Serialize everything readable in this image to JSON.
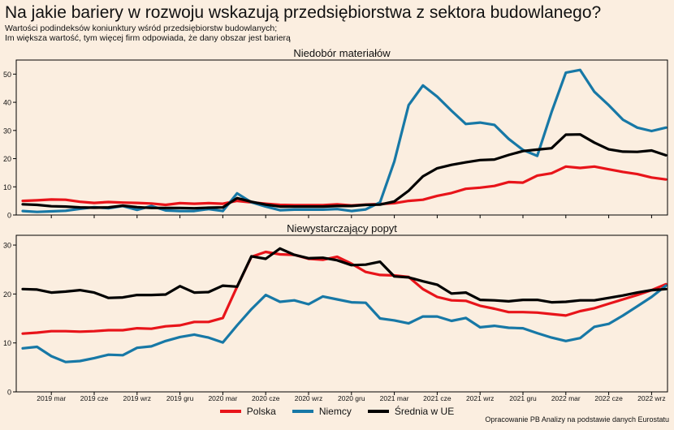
{
  "title": "Na jakie bariery w rozwoju wskazują przedsiębiorstwa z sektora budowlanego?",
  "subtitle_line1": "Wartości podindeksów koniunktury wśród przedsiębiorstw budowlanych;",
  "subtitle_line2": "Im większa wartość, tym więcej firm odpowiada, że dany obszar jest barierą",
  "source": "Opracowanie PB Analizy na podstawie danych Eurostatu",
  "colors": {
    "Polska": "#e8141a",
    "Niemcy": "#1778a6",
    "Średnia w UE": "#000000"
  },
  "x_tick_labels": [
    "2019 mar",
    "2019 cze",
    "2019 wrz",
    "2019 gru",
    "2020 mar",
    "2020 cze",
    "2020 wrz",
    "2020 gru",
    "2021 mar",
    "2021 cze",
    "2021 wrz",
    "2021 gru",
    "2022 mar",
    "2022 cze",
    "2022 wrz"
  ],
  "chart_data": [
    {
      "type": "line",
      "title": "Niedobór materiałów",
      "x_start": "2019-01",
      "x_end": "2022-10",
      "ylim": [
        0,
        55
      ],
      "yticks": [
        0,
        10,
        20,
        30,
        40,
        50
      ],
      "series": [
        {
          "name": "Polska",
          "values": [
            5,
            5.2,
            5.5,
            5.4,
            4.7,
            4.3,
            4.6,
            4.4,
            4.3,
            4.1,
            3.6,
            4.2,
            4,
            4.2,
            4,
            5,
            4.5,
            4,
            3.6,
            3.5,
            3.5,
            3.5,
            3.8,
            3.4,
            3.7,
            3.9,
            4.2,
            5,
            5.4,
            6.8,
            7.8,
            9.3,
            9.7,
            10.3,
            11.7,
            11.5,
            14,
            14.8,
            17.2,
            16.7,
            17.2,
            16.2,
            15.3,
            14.5,
            13.3,
            12.6
          ]
        },
        {
          "name": "Niemcy",
          "values": [
            1.4,
            1.1,
            1.3,
            1.5,
            2.2,
            2.8,
            2.4,
            3.2,
            1.8,
            3.2,
            1.6,
            1.4,
            1.4,
            2.1,
            1.4,
            7.7,
            4.5,
            3,
            1.7,
            1.9,
            1.9,
            1.9,
            2.1,
            1.4,
            2,
            4.5,
            19,
            39,
            46,
            42,
            37,
            32.3,
            32.8,
            32,
            27,
            23.1,
            21,
            36.5,
            50.5,
            51.5,
            43.7,
            39,
            33.8,
            31,
            29.8,
            31
          ]
        },
        {
          "name": "Średnia w UE",
          "values": [
            3.8,
            3.6,
            3.1,
            3,
            2.7,
            2.6,
            2.7,
            3.3,
            2.8,
            2.5,
            2.5,
            2.5,
            2.4,
            2.6,
            2.7,
            6,
            4.7,
            3.7,
            3,
            3,
            3,
            3,
            3.2,
            3.2,
            3.6,
            3.7,
            4.8,
            8.6,
            13.7,
            16.6,
            17.8,
            18.7,
            19.5,
            19.7,
            21.3,
            22.7,
            23.2,
            23.7,
            28.5,
            28.6,
            25.7,
            23.3,
            22.5,
            22.4,
            22.9,
            21.2
          ]
        }
      ]
    },
    {
      "type": "line",
      "title": "Niewystarczający popyt",
      "x_start": "2019-01",
      "x_end": "2022-10",
      "ylim": [
        0,
        32
      ],
      "yticks": [
        0,
        10,
        20,
        30
      ],
      "series": [
        {
          "name": "Polska",
          "values": [
            11.9,
            12.1,
            12.4,
            12.4,
            12.3,
            12.4,
            12.6,
            12.6,
            13,
            12.9,
            13.4,
            13.6,
            14.3,
            14.3,
            15.1,
            21.5,
            27.6,
            28.6,
            28.1,
            28,
            27.2,
            27,
            27.6,
            26.2,
            24.5,
            23.9,
            23.8,
            23.5,
            21,
            19.4,
            18.7,
            18.6,
            17.6,
            17,
            16.3,
            16.3,
            16.2,
            15.9,
            15.6,
            16.5,
            17.1,
            18,
            18.9,
            19.8,
            20.8,
            22
          ]
        },
        {
          "name": "Niemcy",
          "values": [
            8.9,
            9.2,
            7.3,
            6.1,
            6.3,
            6.9,
            7.6,
            7.5,
            9,
            9.3,
            10.4,
            11.2,
            11.7,
            11.1,
            10.1,
            13.6,
            16.9,
            19.8,
            18.4,
            18.7,
            17.9,
            19.5,
            18.9,
            18.3,
            18.2,
            15,
            14.6,
            14,
            15.4,
            15.4,
            14.5,
            15.1,
            13.2,
            13.5,
            13.1,
            13,
            12,
            11.1,
            10.4,
            11,
            13.3,
            13.9,
            15.6,
            17.5,
            19.4,
            21.7
          ]
        },
        {
          "name": "Średnia w UE",
          "values": [
            21,
            20.9,
            20.3,
            20.5,
            20.8,
            20.3,
            19.2,
            19.3,
            19.8,
            19.8,
            19.9,
            21.6,
            20.3,
            20.4,
            21.7,
            21.5,
            27.7,
            27.2,
            29.3,
            28,
            27.3,
            27.4,
            26.9,
            25.9,
            26,
            26.6,
            23.6,
            23.4,
            22.6,
            21.9,
            20.1,
            20.3,
            18.8,
            18.7,
            18.5,
            18.8,
            18.8,
            18.3,
            18.4,
            18.7,
            18.7,
            19.2,
            19.7,
            20.3,
            20.8,
            21
          ]
        }
      ]
    }
  ]
}
